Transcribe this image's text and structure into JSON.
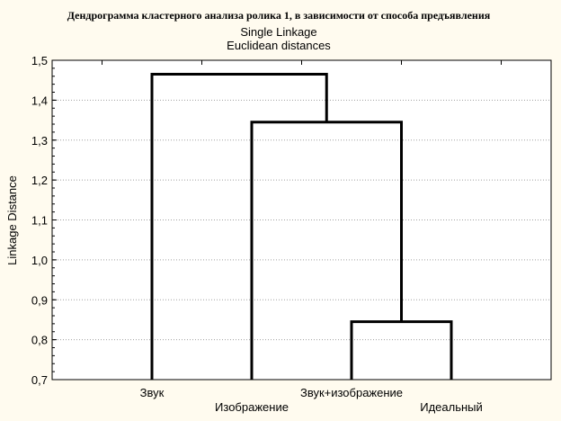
{
  "chart_data": {
    "type": "dendrogram",
    "title": "Дендрограмма кластерного анализа ролика 1, в зависимости от способа предъявления",
    "subtitle": [
      "Single Linkage",
      "Euclidean distances"
    ],
    "ylabel": "Linkage Distance",
    "xlabel": "",
    "ylim": [
      0.7,
      1.5
    ],
    "yticks": [
      0.7,
      0.8,
      0.9,
      1.0,
      1.1,
      1.2,
      1.3,
      1.4,
      1.5
    ],
    "ytick_labels": [
      "0,7",
      "0,8",
      "0,9",
      "1,0",
      "1,1",
      "1,2",
      "1,3",
      "1,4",
      "1,5"
    ],
    "grid": "horizontal dotted",
    "leaves": [
      "Звук",
      "Изображение",
      "Звук+изображение",
      "Идеальный"
    ],
    "merges": [
      {
        "left": "Звук+изображение",
        "right": "Идеальный",
        "distance": 0.845
      },
      {
        "left": "Изображение",
        "right": "Звук+изображение + Идеальный",
        "distance": 1.345
      },
      {
        "left": "Звук",
        "right": "Изображение + Звук+изображение + Идеальный",
        "distance": 1.465
      }
    ],
    "colors": {
      "background": "#fffbef",
      "plot": "#ffffff",
      "line": "#000000",
      "grid": "#a0a0a0"
    }
  }
}
